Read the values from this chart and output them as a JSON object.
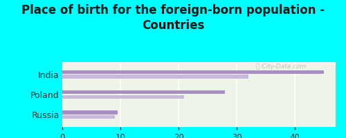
{
  "title": "Place of birth for the foreign-born population -\nCountries",
  "background_color": "#00FFFF",
  "plot_bg_color": "#eef5e8",
  "categories": [
    "India",
    "Poland",
    "Russia"
  ],
  "bars1": [
    45.0,
    28.0,
    9.5
  ],
  "bars2": [
    32.0,
    21.0,
    9.0
  ],
  "bar_color1": "#a98ec4",
  "bar_color2": "#c8b8dc",
  "xlim": [
    0,
    47
  ],
  "xticks": [
    0,
    10,
    20,
    30,
    40
  ],
  "title_fontsize": 12,
  "label_fontsize": 9,
  "tick_fontsize": 8.5
}
